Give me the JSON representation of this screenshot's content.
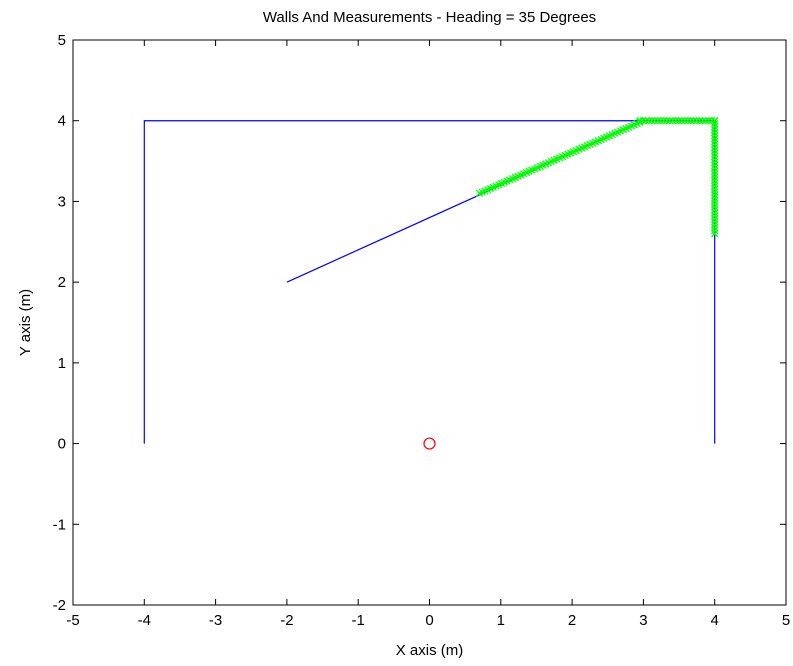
{
  "chart_data": {
    "type": "line",
    "title": "Walls And Measurements - Heading = 35 Degrees",
    "xlabel": "X axis (m)",
    "ylabel": "Y axis (m)",
    "xlim": [
      -5,
      5
    ],
    "ylim": [
      -2,
      5
    ],
    "xticks": [
      "-5",
      "-4",
      "-3",
      "-2",
      "-1",
      "0",
      "1",
      "2",
      "3",
      "4",
      "5"
    ],
    "yticks": [
      "-2",
      "-1",
      "0",
      "1",
      "2",
      "3",
      "4",
      "5"
    ],
    "grid": false,
    "legend": "none",
    "colors": {
      "walls": "#0000ff",
      "measurements": "#00ff00",
      "robot": "#ff0000",
      "axes": "#000000"
    },
    "walls": [
      {
        "x": [
          -4,
          -4,
          4,
          4
        ],
        "y": [
          0,
          4,
          4,
          0
        ]
      },
      {
        "x": [
          -2,
          3
        ],
        "y": [
          2,
          4
        ]
      }
    ],
    "measurements": {
      "marker": "x",
      "segments": [
        {
          "x": [
            0.7,
            2.95
          ],
          "y": [
            3.1,
            3.98
          ]
        },
        {
          "x": [
            2.95,
            4.0
          ],
          "y": [
            4.0,
            4.0
          ]
        },
        {
          "x": [
            4.0,
            4.0
          ],
          "y": [
            4.0,
            2.6
          ]
        }
      ]
    },
    "robot": {
      "x": 0,
      "y": 0,
      "marker": "circle"
    }
  }
}
